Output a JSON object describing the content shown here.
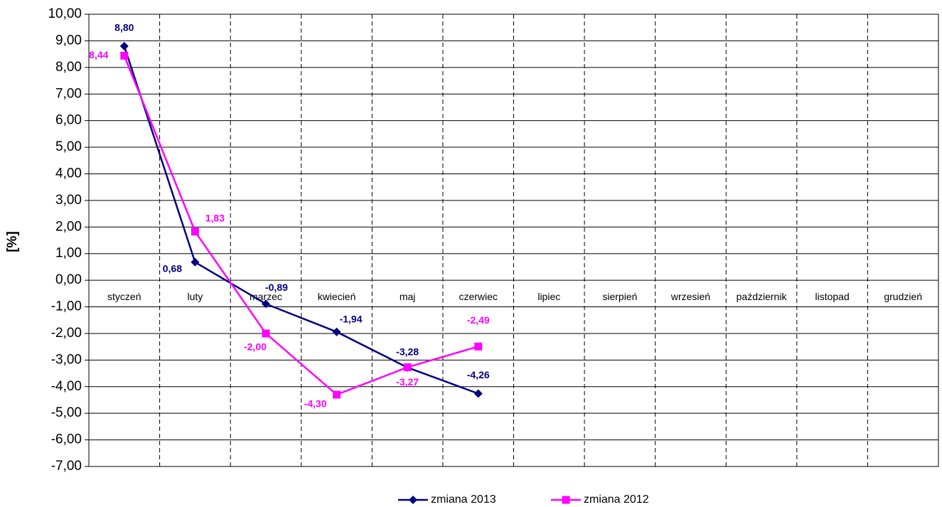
{
  "chart_data": {
    "type": "line",
    "y_label": "[%]",
    "categories": [
      "styczeń",
      "luty",
      "marzec",
      "kwiecień",
      "maj",
      "czerwiec",
      "lipiec",
      "sierpień",
      "wrzesień",
      "październik",
      "listopad",
      "grudzień"
    ],
    "series": [
      {
        "name": "zmiana 2013",
        "color": "#000080",
        "marker": "diamond",
        "values": [
          8.8,
          0.68,
          -0.89,
          -1.94,
          -3.28,
          -4.26,
          null,
          null,
          null,
          null,
          null,
          null
        ],
        "value_labels": [
          "8,80",
          "0,68",
          "-0,89",
          "-1,94",
          "-3,28",
          "-4,26",
          null,
          null,
          null,
          null,
          null,
          null
        ]
      },
      {
        "name": "zmiana 2012",
        "color": "#ff00ff",
        "marker": "square",
        "values": [
          8.44,
          1.83,
          -2.0,
          -4.3,
          -3.27,
          -2.49,
          null,
          null,
          null,
          null,
          null,
          null
        ],
        "value_labels": [
          "8,44",
          "1,83",
          "-2,00",
          "-4,30",
          "-3,27",
          "-2,49",
          null,
          null,
          null,
          null,
          null,
          null
        ]
      }
    ],
    "ylim": [
      -7,
      10
    ],
    "yticks": [
      {
        "value": 10,
        "label": "10,00"
      },
      {
        "value": 9,
        "label": "9,00"
      },
      {
        "value": 8,
        "label": "8,00"
      },
      {
        "value": 7,
        "label": "7,00"
      },
      {
        "value": 6,
        "label": "6,00"
      },
      {
        "value": 5,
        "label": "5,00"
      },
      {
        "value": 4,
        "label": "4,00"
      },
      {
        "value": 3,
        "label": "3,00"
      },
      {
        "value": 2,
        "label": "2,00"
      },
      {
        "value": 1,
        "label": "1,00"
      },
      {
        "value": 0,
        "label": "0,00"
      },
      {
        "value": -1,
        "label": "-1,00"
      },
      {
        "value": -2,
        "label": "-2,00"
      },
      {
        "value": -3,
        "label": "-3,00"
      },
      {
        "value": -4,
        "label": "-4,00"
      },
      {
        "value": -5,
        "label": "-5,00"
      },
      {
        "value": -6,
        "label": "-6,00"
      },
      {
        "value": -7,
        "label": "-7,00"
      }
    ],
    "grid": true
  }
}
